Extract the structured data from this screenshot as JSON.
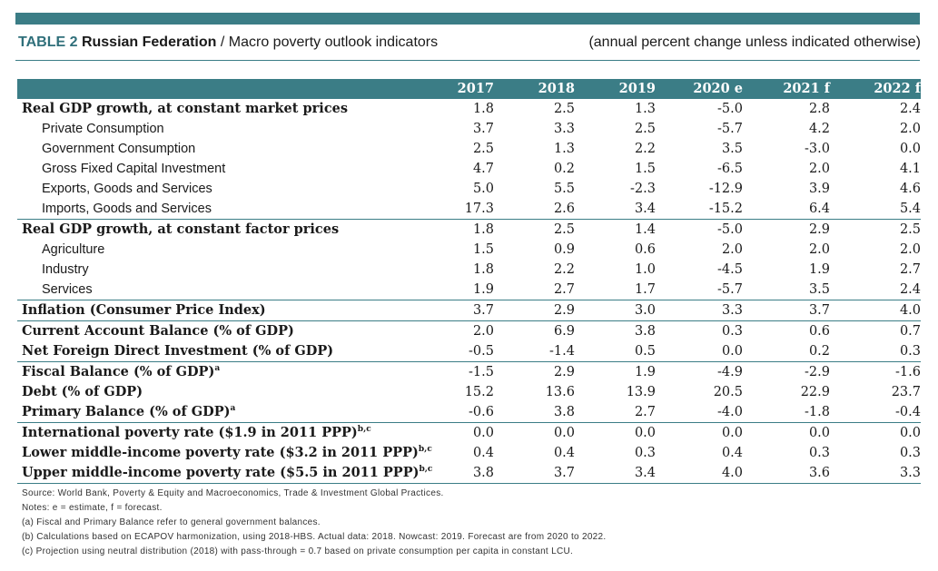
{
  "title": {
    "label": "TABLE 2",
    "country": "Russian Federation",
    "separator": "/",
    "subtitle": "Macro poverty outlook indicators",
    "units_note": "(annual percent change unless indicated otherwise)"
  },
  "table": {
    "columns": [
      "2017",
      "2018",
      "2019",
      "2020 e",
      "2021 f",
      "2022 f"
    ],
    "rows": [
      {
        "label": "Real GDP growth, at constant market prices",
        "sup": "",
        "style": "main",
        "sep": false,
        "values": [
          "1.8",
          "2.5",
          "1.3",
          "-5.0",
          "2.8",
          "2.4"
        ]
      },
      {
        "label": "Private Consumption",
        "sup": "",
        "style": "sub",
        "sep": false,
        "values": [
          "3.7",
          "3.3",
          "2.5",
          "-5.7",
          "4.2",
          "2.0"
        ]
      },
      {
        "label": "Government Consumption",
        "sup": "",
        "style": "sub",
        "sep": false,
        "values": [
          "2.5",
          "1.3",
          "2.2",
          "3.5",
          "-3.0",
          "0.0"
        ]
      },
      {
        "label": "Gross Fixed Capital Investment",
        "sup": "",
        "style": "sub",
        "sep": false,
        "values": [
          "4.7",
          "0.2",
          "1.5",
          "-6.5",
          "2.0",
          "4.1"
        ]
      },
      {
        "label": "Exports, Goods and Services",
        "sup": "",
        "style": "sub",
        "sep": false,
        "values": [
          "5.0",
          "5.5",
          "-2.3",
          "-12.9",
          "3.9",
          "4.6"
        ]
      },
      {
        "label": "Imports, Goods and Services",
        "sup": "",
        "style": "sub",
        "sep": false,
        "values": [
          "17.3",
          "2.6",
          "3.4",
          "-15.2",
          "6.4",
          "5.4"
        ]
      },
      {
        "label": "Real GDP growth, at constant factor prices",
        "sup": "",
        "style": "main",
        "sep": true,
        "values": [
          "1.8",
          "2.5",
          "1.4",
          "-5.0",
          "2.9",
          "2.5"
        ]
      },
      {
        "label": "Agriculture",
        "sup": "",
        "style": "sub",
        "sep": false,
        "values": [
          "1.5",
          "0.9",
          "0.6",
          "2.0",
          "2.0",
          "2.0"
        ]
      },
      {
        "label": "Industry",
        "sup": "",
        "style": "sub",
        "sep": false,
        "values": [
          "1.8",
          "2.2",
          "1.0",
          "-4.5",
          "1.9",
          "2.7"
        ]
      },
      {
        "label": "Services",
        "sup": "",
        "style": "sub",
        "sep": false,
        "values": [
          "1.9",
          "2.7",
          "1.7",
          "-5.7",
          "3.5",
          "2.4"
        ]
      },
      {
        "label": "Inflation (Consumer Price Index)",
        "sup": "",
        "style": "main",
        "sep": true,
        "values": [
          "3.7",
          "2.9",
          "3.0",
          "3.3",
          "3.7",
          "4.0"
        ]
      },
      {
        "label": "Current Account Balance (% of GDP)",
        "sup": "",
        "style": "main",
        "sep": true,
        "values": [
          "2.0",
          "6.9",
          "3.8",
          "0.3",
          "0.6",
          "0.7"
        ]
      },
      {
        "label": "Net Foreign Direct Investment (% of GDP)",
        "sup": "",
        "style": "main",
        "sep": false,
        "values": [
          "-0.5",
          "-1.4",
          "0.5",
          "0.0",
          "0.2",
          "0.3"
        ]
      },
      {
        "label": "Fiscal Balance (% of GDP)",
        "sup": "a",
        "style": "main",
        "sep": true,
        "values": [
          "-1.5",
          "2.9",
          "1.9",
          "-4.9",
          "-2.9",
          "-1.6"
        ]
      },
      {
        "label": "Debt (% of GDP)",
        "sup": "",
        "style": "main",
        "sep": false,
        "values": [
          "15.2",
          "13.6",
          "13.9",
          "20.5",
          "22.9",
          "23.7"
        ]
      },
      {
        "label": "Primary Balance (% of GDP)",
        "sup": "a",
        "style": "main",
        "sep": false,
        "values": [
          "-0.6",
          "3.8",
          "2.7",
          "-4.0",
          "-1.8",
          "-0.4"
        ]
      },
      {
        "label": "International poverty rate ($1.9 in 2011 PPP)",
        "sup": "b,c",
        "style": "main",
        "sep": true,
        "values": [
          "0.0",
          "0.0",
          "0.0",
          "0.0",
          "0.0",
          "0.0"
        ]
      },
      {
        "label": "Lower middle-income poverty rate ($3.2 in 2011 PPP)",
        "sup": "b,c",
        "style": "main",
        "sep": false,
        "values": [
          "0.4",
          "0.4",
          "0.3",
          "0.4",
          "0.3",
          "0.3"
        ]
      },
      {
        "label": "Upper middle-income poverty rate ($5.5 in 2011 PPP)",
        "sup": "b,c",
        "style": "main",
        "sep": false,
        "values": [
          "3.8",
          "3.7",
          "3.4",
          "4.0",
          "3.6",
          "3.3"
        ]
      }
    ]
  },
  "notes": [
    "Source: World Bank, Poverty & Equity and Macroeconomics, Trade & Investment Global Practices.",
    "Notes: e = estimate, f = forecast.",
    "(a) Fiscal and Primary Balance refer to general government balances.",
    "(b) Calculations based on ECAPOV harmonization, using 2018-HBS. Actual data: 2018. Nowcast: 2019. Forecast are from 2020 to 2022.",
    "(c) Projection using neutral distribution (2018) with pass-through = 0.7 based on private consumption per capita in constant LCU."
  ],
  "colors": {
    "accent": "#3b7d86",
    "title_label": "#2f6f7a"
  }
}
